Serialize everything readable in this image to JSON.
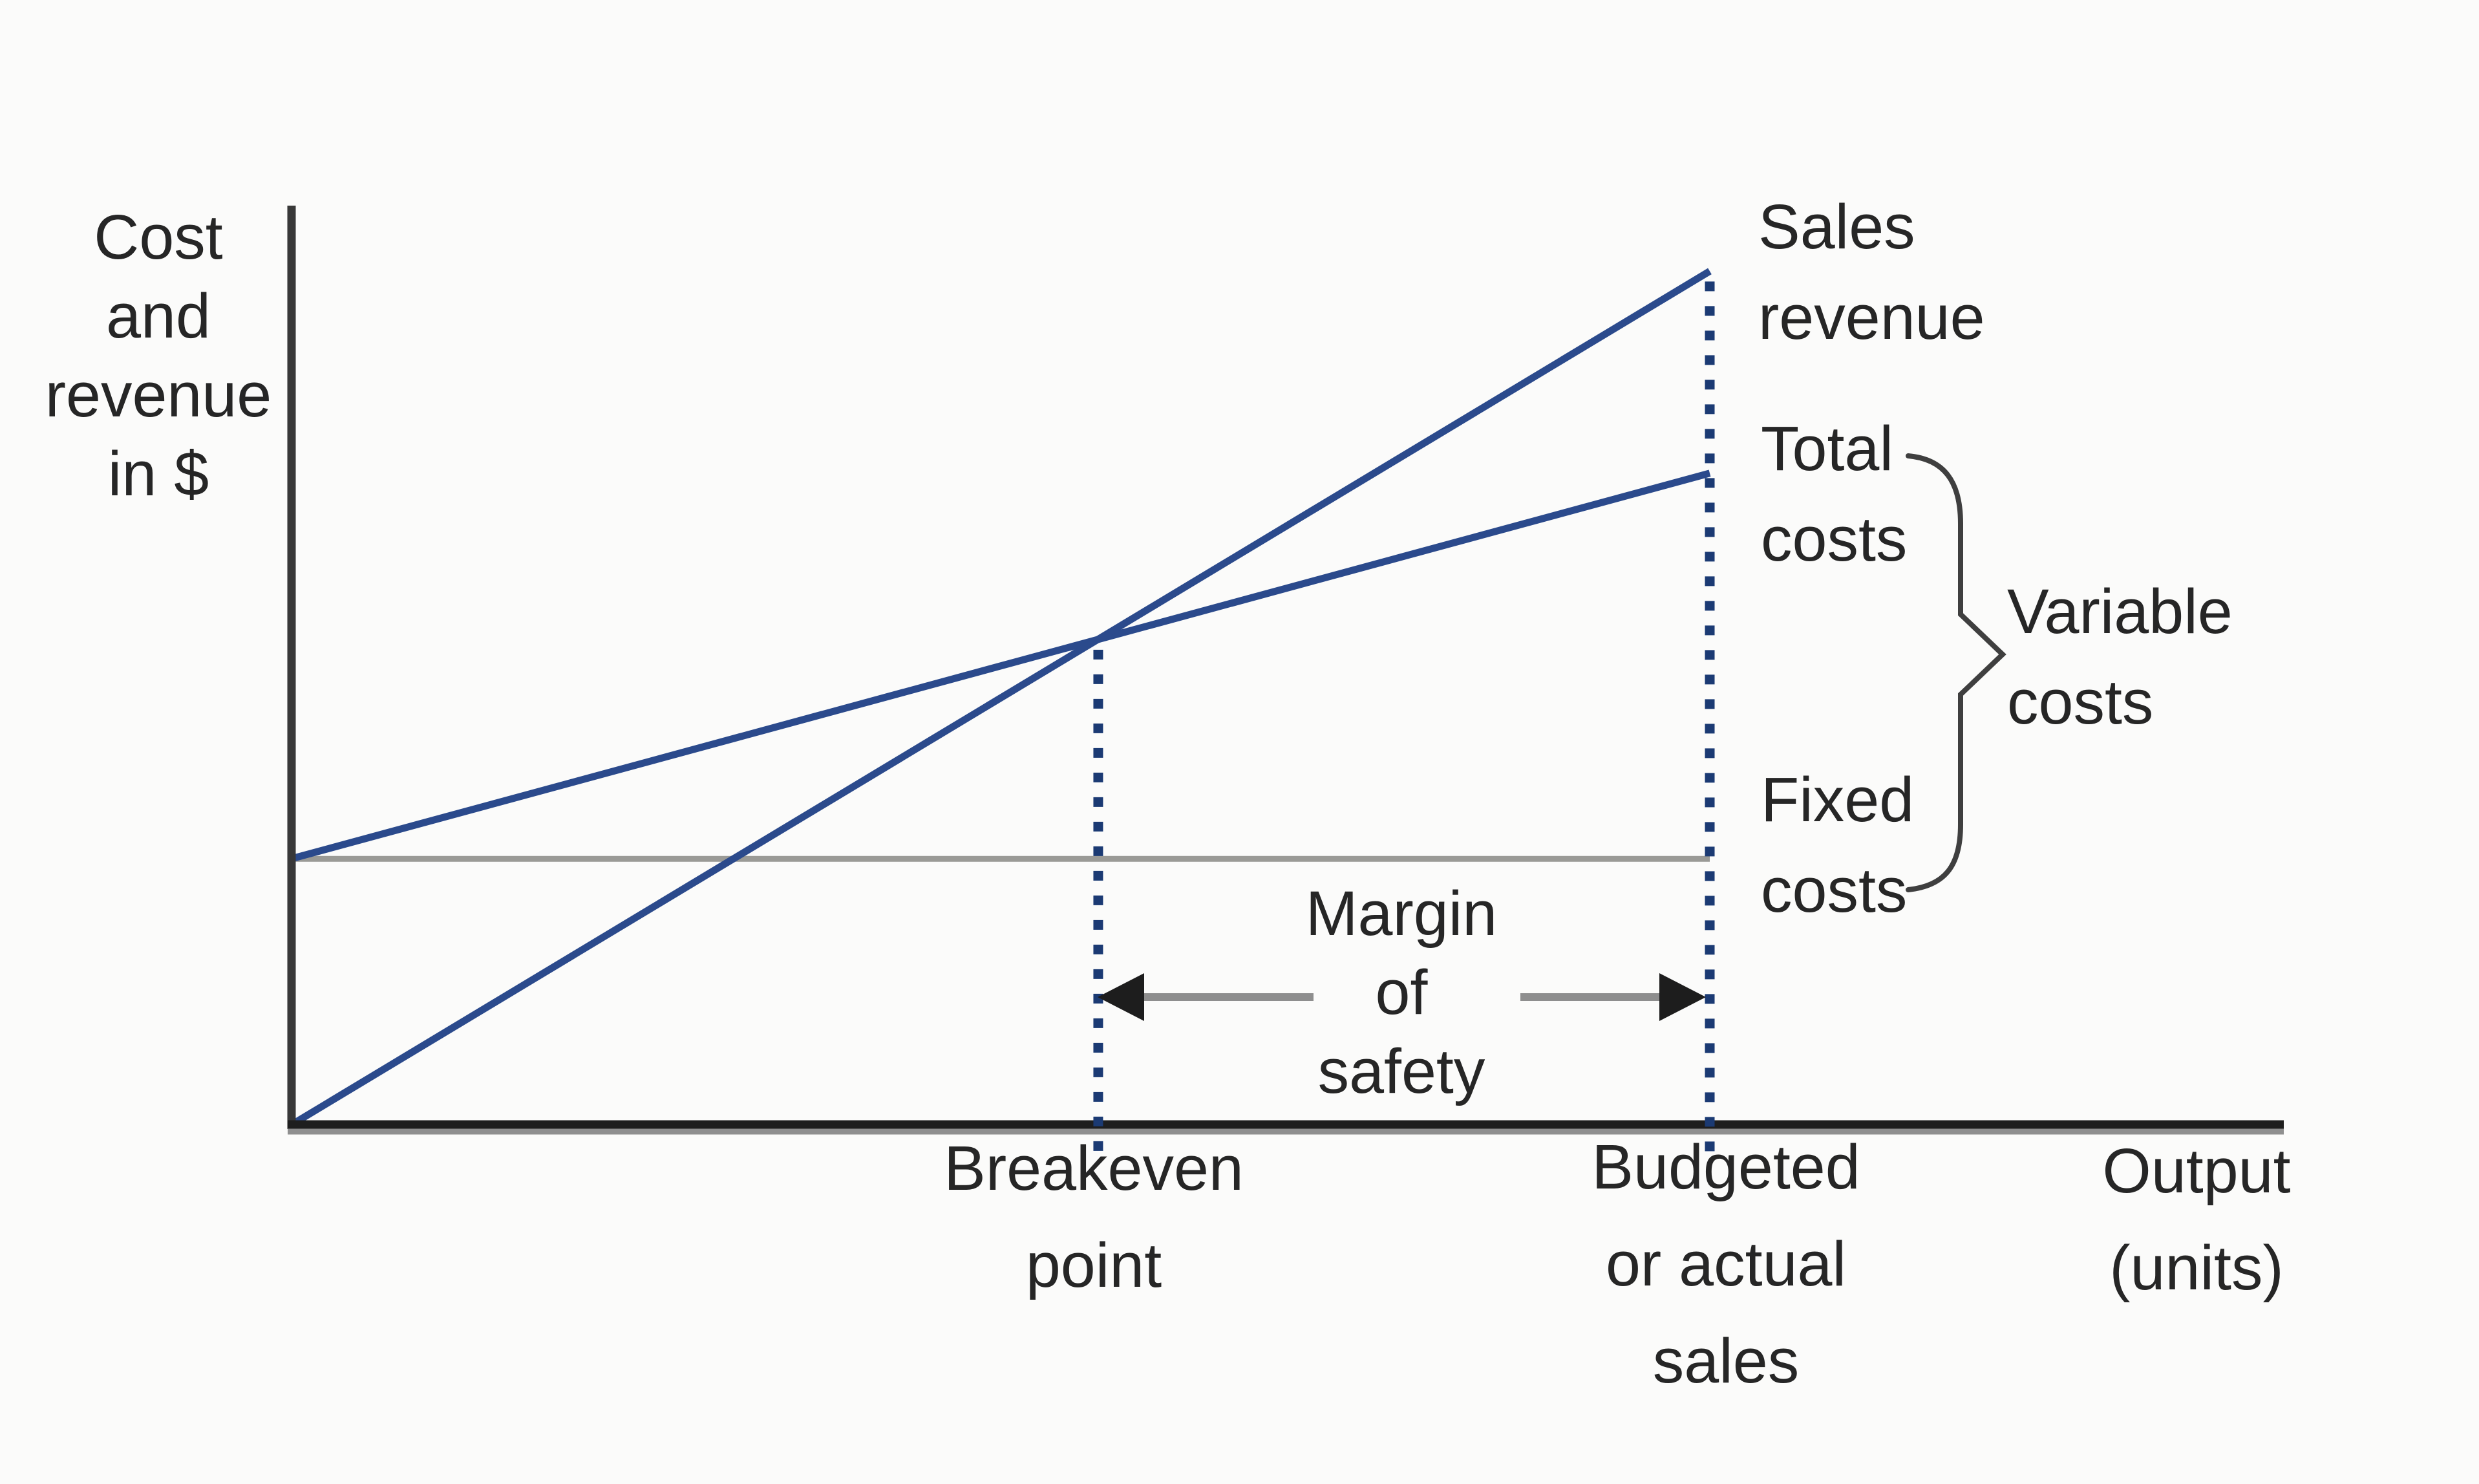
{
  "figure": {
    "background": "#fbfbfa",
    "colors": {
      "line_blue": "#2b4a8c",
      "dotted_navy": "#1b3a73",
      "axis_black": "#1e1e1e",
      "axis_dark": "#383838",
      "axis_shadow": "#8f8f8f",
      "fixed_line_gray": "#9a9a96",
      "arrow_shaft": "#8e8e8e",
      "arrow_head": "#1d1d1d",
      "brace": "#3f3f3f",
      "text": "#262626"
    }
  },
  "labels": {
    "y_axis": "Cost\nand\nrevenue\nin $",
    "x_axis": "Output\n(units)",
    "sales_revenue": "Sales\nrevenue",
    "total_costs": "Total\ncosts",
    "variable_costs": "Variable\ncosts",
    "fixed_costs": "Fixed\ncosts",
    "margin_of_safety": "Margin\nof\nsafety",
    "breakeven_point": "Breakeven\npoint",
    "budgeted_sales": "Budgeted\nor actual\nsales"
  },
  "chart_data": {
    "type": "line",
    "title": "Breakeven chart (cost-volume-profit diagram)",
    "xlabel": "Output (units)",
    "ylabel": "Cost and revenue in $",
    "axis_values_shown": false,
    "units_note": "no numeric scale printed; values are relative (budgeted sales = 100 units, revenue axis = 0-100 index)",
    "xlim": [
      0,
      100
    ],
    "ylim": [
      0,
      100
    ],
    "grid": false,
    "legend": "labels at right ends of lines",
    "series": [
      {
        "id": "sales-revenue",
        "name": "Sales revenue",
        "color": "line_blue",
        "stroke_width": 11,
        "x": [
          0,
          100
        ],
        "values": [
          0,
          93
        ]
      },
      {
        "id": "total-costs",
        "name": "Total costs",
        "color": "line_blue",
        "stroke_width": 11,
        "x": [
          0,
          100
        ],
        "values": [
          29,
          71
        ]
      },
      {
        "id": "fixed-costs",
        "name": "Fixed costs",
        "color": "fixed_line_gray",
        "stroke_width": 9,
        "x": [
          0,
          100
        ],
        "values": [
          29,
          29
        ]
      }
    ],
    "vlines": [
      {
        "id": "breakeven",
        "label": "Breakeven point",
        "x": 56.9,
        "y_top": 52.9,
        "style": "dotted",
        "color": "dotted_navy"
      },
      {
        "id": "budgeted",
        "label": "Budgeted or actual sales",
        "x": 100,
        "y_top": 93,
        "style": "dotted",
        "color": "dotted_navy"
      }
    ],
    "annotations": [
      {
        "label": "Breakeven point",
        "x": 56.9,
        "y": 52.9,
        "meaning": "intersection of sales revenue and total costs"
      },
      {
        "label": "Margin of safety",
        "from_x": 56.9,
        "to_x": 100,
        "shown_as": "double-headed arrow between breakeven and budgeted sales"
      },
      {
        "label": "Variable costs",
        "shown_as": "brace spanning from total costs down to fixed costs at budgeted output"
      },
      {
        "label": "Fixed costs",
        "y": 29,
        "shown_as": "horizontal gray line from y-axis to budgeted sales line"
      }
    ]
  }
}
